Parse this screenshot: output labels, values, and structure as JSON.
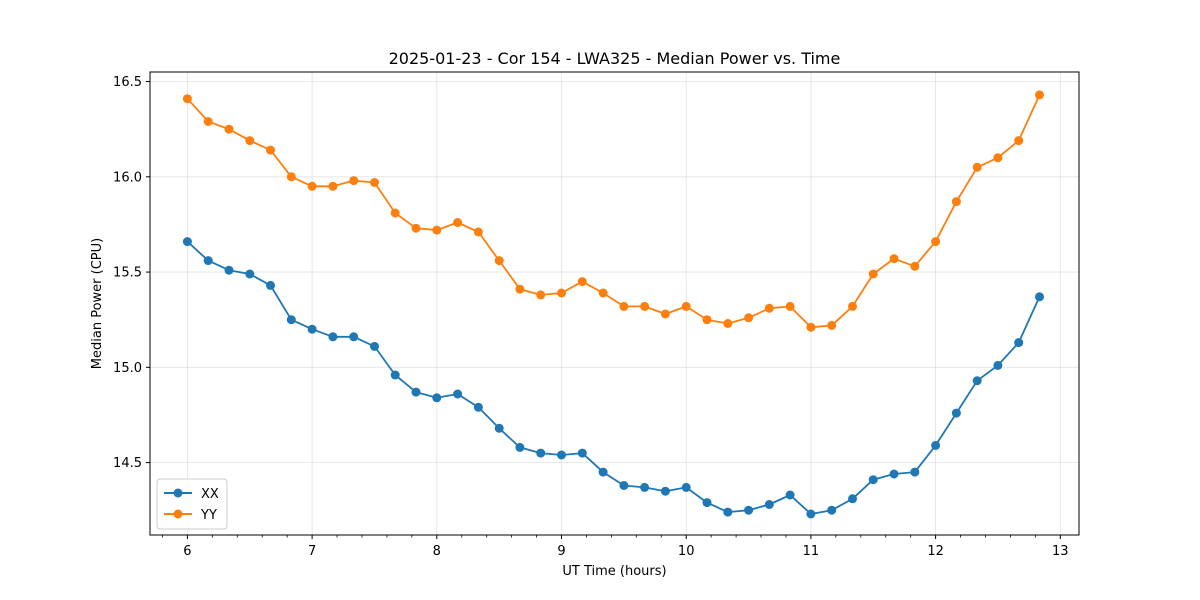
{
  "chart_data": {
    "type": "line",
    "title": "2025-01-23 - Cor 154 - LWA325 - Median Power vs. Time",
    "xlabel": "UT Time (hours)",
    "ylabel": "Median Power (CPU)",
    "xlim": [
      5.7,
      13.15
    ],
    "ylim": [
      14.12,
      16.55
    ],
    "xticks": [
      6,
      7,
      8,
      9,
      10,
      11,
      12,
      13
    ],
    "xtick_labels": [
      "6",
      "7",
      "8",
      "9",
      "10",
      "11",
      "12",
      "13"
    ],
    "yticks": [
      14.5,
      15.0,
      15.5,
      16.0,
      16.5
    ],
    "ytick_labels": [
      "14.5",
      "15.0",
      "15.5",
      "16.0",
      "16.5"
    ],
    "grid": true,
    "legend_position": "lower-left",
    "x": [
      6.0,
      6.1667,
      6.3333,
      6.5,
      6.6667,
      6.8333,
      7.0,
      7.1667,
      7.3333,
      7.5,
      7.6667,
      7.8333,
      8.0,
      8.1667,
      8.3333,
      8.5,
      8.6667,
      8.8333,
      9.0,
      9.1667,
      9.3333,
      9.5,
      9.6667,
      9.8333,
      10.0,
      10.1667,
      10.3333,
      10.5,
      10.6667,
      10.8333,
      11.0,
      11.1667,
      11.3333,
      11.5,
      11.6667,
      11.8333,
      12.0,
      12.1667,
      12.3333,
      12.5,
      12.6667,
      12.8333
    ],
    "series": [
      {
        "name": "XX",
        "color": "#1f77b4",
        "values": [
          15.66,
          15.56,
          15.51,
          15.49,
          15.43,
          15.25,
          15.2,
          15.16,
          15.16,
          15.11,
          14.96,
          14.87,
          14.84,
          14.86,
          14.79,
          14.68,
          14.58,
          14.55,
          14.54,
          14.55,
          14.45,
          14.38,
          14.37,
          14.35,
          14.37,
          14.29,
          14.24,
          14.25,
          14.28,
          14.33,
          14.23,
          14.25,
          14.31,
          14.41,
          14.44,
          14.45,
          14.59,
          14.76,
          14.93,
          15.01,
          15.13,
          15.37
        ]
      },
      {
        "name": "YY",
        "color": "#ff7f0e",
        "values": [
          16.41,
          16.29,
          16.25,
          16.19,
          16.14,
          16.0,
          15.95,
          15.95,
          15.98,
          15.97,
          15.81,
          15.73,
          15.72,
          15.76,
          15.71,
          15.56,
          15.41,
          15.38,
          15.39,
          15.45,
          15.39,
          15.32,
          15.32,
          15.28,
          15.32,
          15.25,
          15.23,
          15.26,
          15.31,
          15.32,
          15.21,
          15.22,
          15.32,
          15.49,
          15.57,
          15.53,
          15.66,
          15.87,
          16.05,
          16.1,
          16.19,
          16.43
        ]
      }
    ]
  }
}
